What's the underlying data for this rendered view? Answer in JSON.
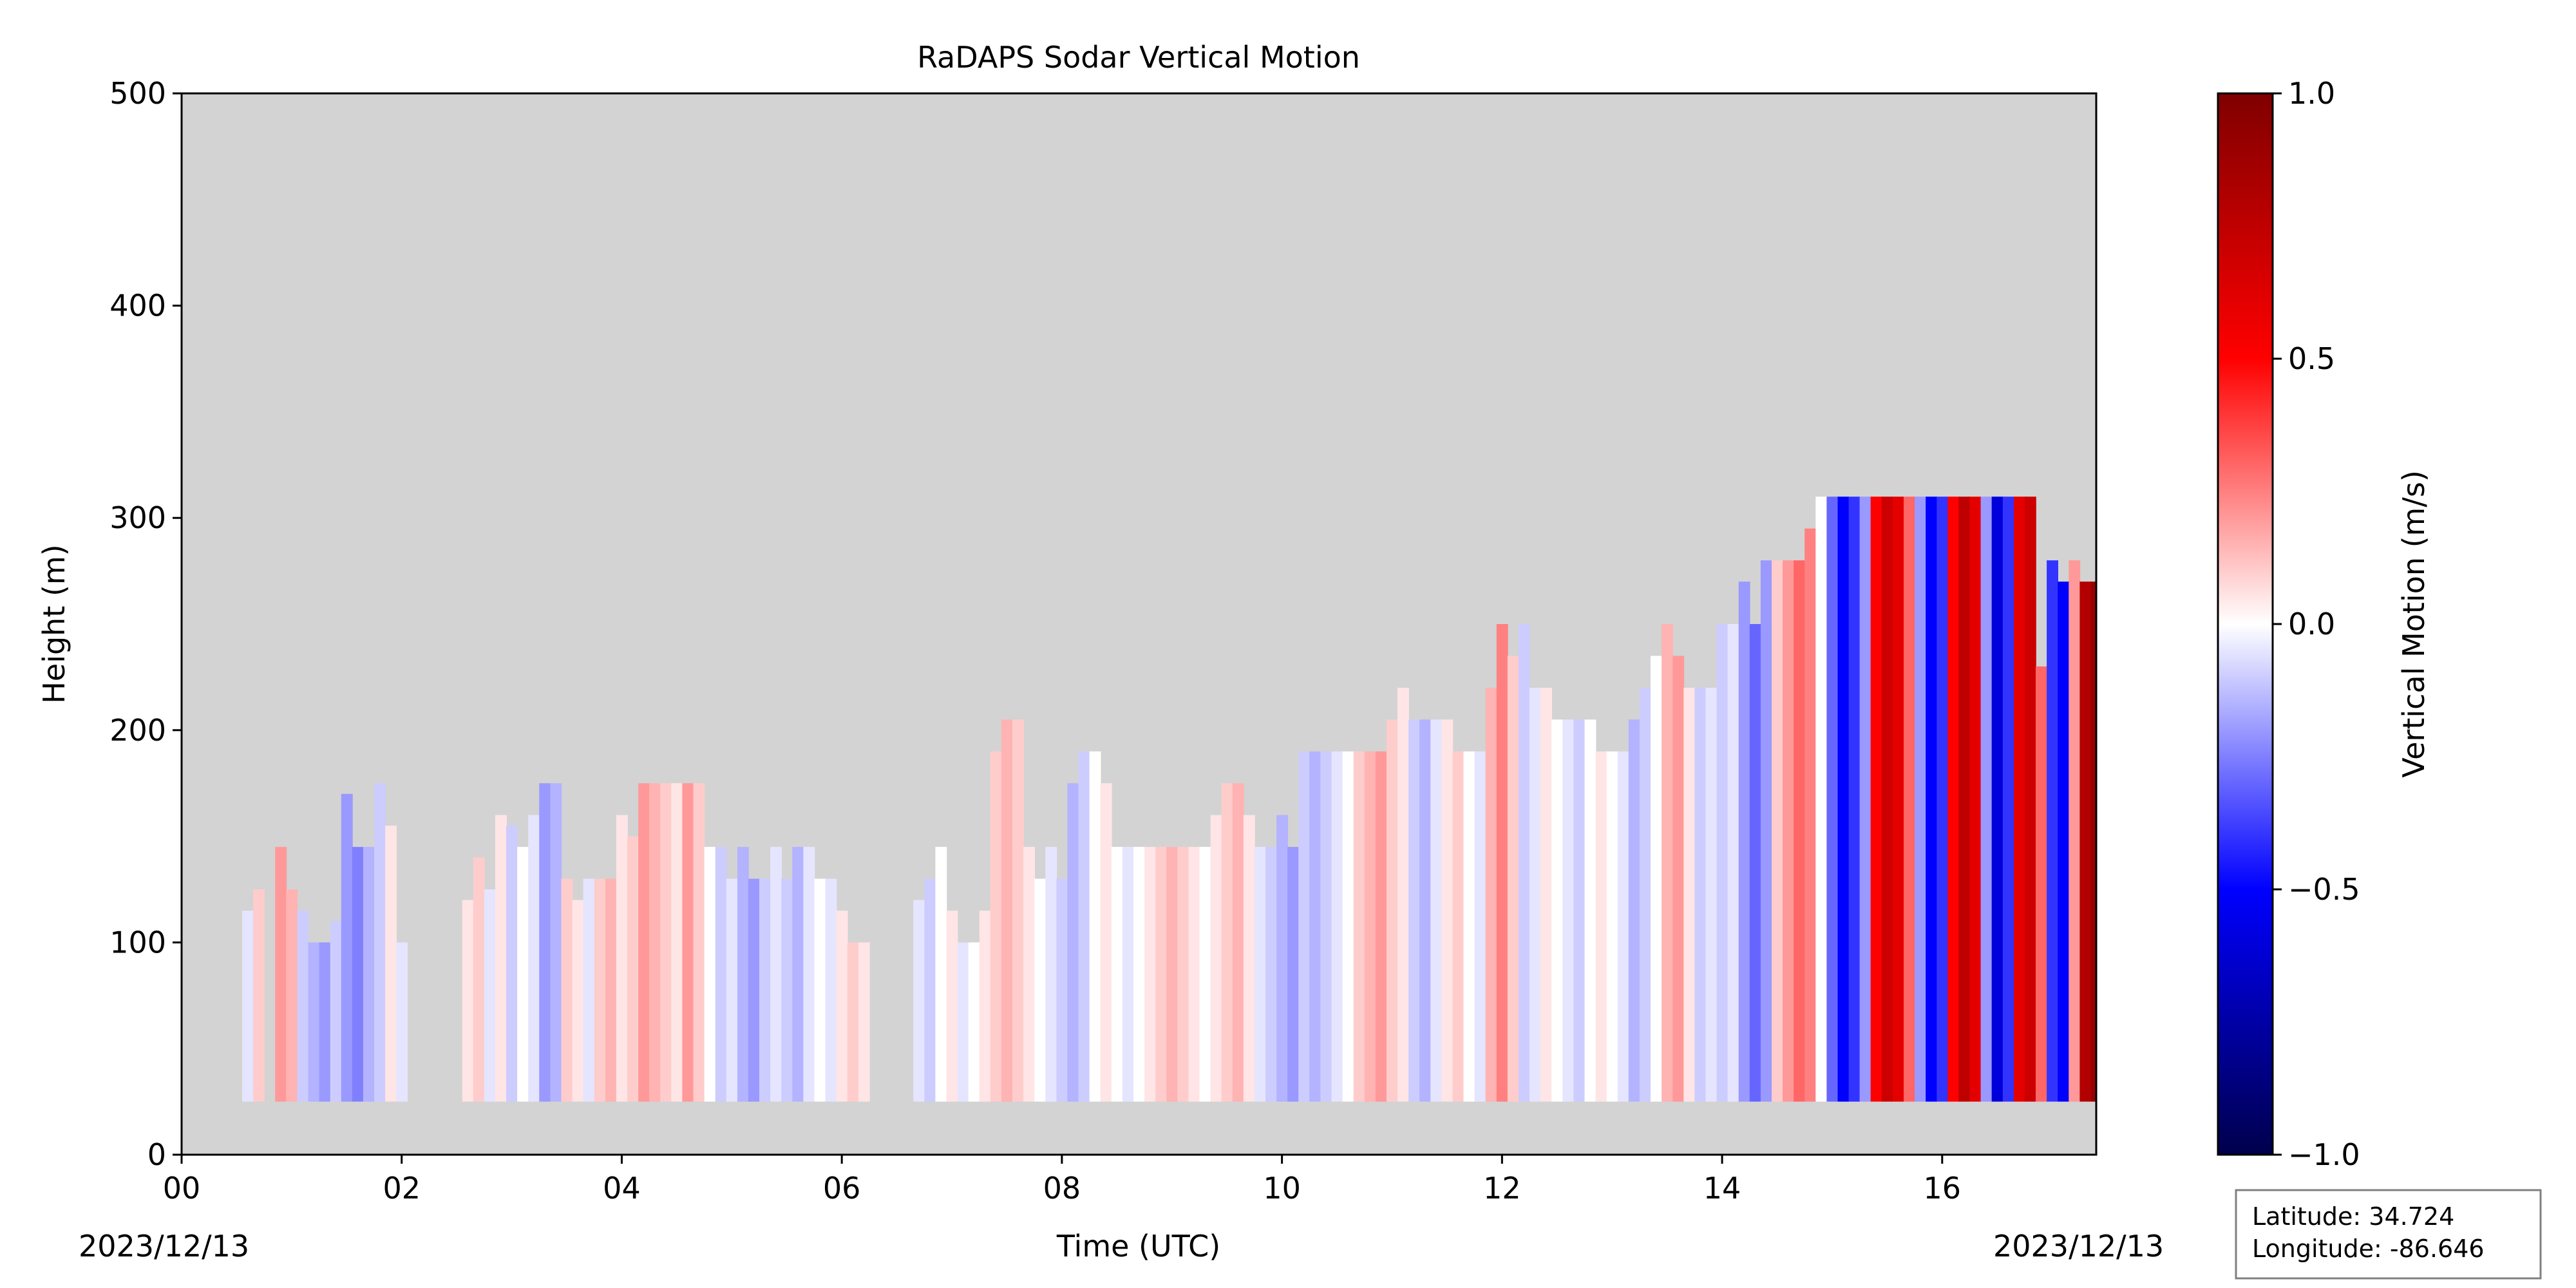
{
  "figure": {
    "title": "RaDAPS Sodar Vertical Motion",
    "date_left": "2023/12/13",
    "date_right": "2023/12/13",
    "location": {
      "latitude_label": "Latitude: 34.724",
      "longitude_label": "Longitude: -86.646"
    }
  },
  "chart_data": {
    "type": "heatmap",
    "title": "RaDAPS Sodar Vertical Motion",
    "xlabel": "Time (UTC)",
    "ylabel": "Height (m)",
    "xlim": [
      0,
      17.4
    ],
    "ylim": [
      0,
      500
    ],
    "x_ticks": [
      0,
      2,
      4,
      6,
      8,
      10,
      12,
      14,
      16
    ],
    "x_tick_labels": [
      "00",
      "02",
      "04",
      "06",
      "08",
      "10",
      "12",
      "14",
      "16"
    ],
    "y_ticks": [
      0,
      100,
      200,
      300,
      400,
      500
    ],
    "y_tick_labels": [
      "0",
      "100",
      "200",
      "300",
      "400",
      "500"
    ],
    "background_color": "#d3d3d3",
    "grid": false,
    "colorbar": {
      "label": "Vertical Motion (m/s)",
      "colormap": "seismic",
      "vmin": -1.0,
      "vmax": 1.0,
      "ticks": [
        1.0,
        0.5,
        0.0,
        -0.5,
        -1.0
      ],
      "tick_labels": [
        "1.0",
        "0.5",
        "0.0",
        "−0.5",
        "−1.0"
      ],
      "colors": [
        "#00004c",
        "#0000ff",
        "#ffffff",
        "#ff0000",
        "#7f0000"
      ]
    },
    "data_floor_m": 25,
    "segments": [
      {
        "times": [
          0.6,
          0.7,
          0.8,
          0.9,
          1.0,
          1.1,
          1.2,
          1.3,
          1.4,
          1.5,
          1.6,
          1.7,
          1.8,
          1.9,
          2.0
        ],
        "tops": [
          115,
          125,
          25,
          145,
          125,
          115,
          100,
          100,
          110,
          170,
          145,
          145,
          175,
          155,
          100
        ],
        "motion": [
          -0.05,
          0.1,
          0.0,
          0.2,
          0.15,
          -0.1,
          -0.15,
          -0.2,
          -0.1,
          -0.2,
          -0.25,
          -0.15,
          -0.1,
          0.05,
          -0.05
        ]
      },
      {
        "times": [
          2.6,
          2.7,
          2.8,
          2.9,
          3.0,
          3.1,
          3.2,
          3.3,
          3.4,
          3.5,
          3.6,
          3.7,
          3.8,
          3.9,
          4.0,
          4.1,
          4.2,
          4.3,
          4.4,
          4.5,
          4.6,
          4.7,
          4.8,
          4.9,
          5.0,
          5.1,
          5.2,
          5.3,
          5.4,
          5.5,
          5.6,
          5.7,
          5.8,
          5.9,
          6.0,
          6.1,
          6.2
        ],
        "tops": [
          120,
          140,
          125,
          160,
          155,
          145,
          160,
          175,
          175,
          130,
          120,
          130,
          130,
          130,
          160,
          150,
          175,
          175,
          175,
          175,
          175,
          175,
          145,
          145,
          130,
          145,
          130,
          130,
          145,
          130,
          145,
          145,
          130,
          130,
          115,
          100,
          100
        ],
        "motion": [
          0.05,
          0.1,
          -0.05,
          0.05,
          -0.1,
          0.0,
          -0.05,
          -0.2,
          -0.15,
          0.1,
          0.05,
          -0.05,
          0.1,
          0.15,
          0.05,
          0.1,
          0.2,
          0.15,
          0.1,
          0.05,
          0.2,
          0.1,
          0.0,
          -0.1,
          -0.05,
          -0.15,
          -0.2,
          -0.1,
          -0.05,
          -0.1,
          -0.15,
          -0.05,
          0.0,
          -0.05,
          0.05,
          0.1,
          0.05
        ]
      },
      {
        "times": [
          6.7,
          6.8,
          6.9,
          7.0,
          7.1,
          7.2,
          7.3,
          7.4,
          7.5,
          7.6,
          7.7,
          7.8,
          7.9,
          8.0,
          8.1,
          8.2,
          8.3,
          8.4,
          8.5,
          8.6,
          8.7,
          8.8,
          8.9,
          9.0,
          9.1,
          9.2,
          9.3,
          9.4,
          9.5,
          9.6,
          9.7,
          9.8,
          9.9,
          10.0,
          10.1,
          10.2,
          10.3,
          10.4,
          10.5,
          10.6,
          10.7,
          10.8,
          10.9,
          11.0,
          11.1,
          11.2,
          11.3,
          11.4,
          11.5,
          11.6,
          11.7,
          11.8,
          11.9,
          12.0,
          12.1,
          12.2,
          12.3,
          12.4,
          12.5,
          12.6,
          12.7,
          12.8,
          12.9,
          13.0,
          13.1,
          13.2,
          13.3,
          13.4,
          13.5,
          13.6,
          13.7,
          13.8,
          13.9,
          14.0,
          14.1,
          14.2,
          14.3,
          14.4,
          14.5,
          14.6,
          14.7,
          14.8,
          14.9,
          15.0,
          15.1,
          15.2,
          15.3,
          15.4,
          15.5,
          15.6,
          15.7,
          15.8,
          15.9,
          16.0,
          16.1,
          16.2,
          16.3,
          16.4,
          16.5,
          16.6,
          16.7,
          16.8,
          16.9,
          17.0,
          17.1,
          17.2,
          17.3,
          17.4
        ],
        "tops": [
          120,
          130,
          145,
          115,
          100,
          100,
          115,
          190,
          205,
          205,
          145,
          130,
          145,
          130,
          175,
          190,
          190,
          175,
          145,
          145,
          145,
          145,
          145,
          145,
          145,
          145,
          145,
          160,
          175,
          175,
          160,
          145,
          145,
          160,
          145,
          190,
          190,
          190,
          190,
          190,
          190,
          190,
          190,
          205,
          220,
          205,
          205,
          205,
          205,
          190,
          190,
          190,
          220,
          250,
          235,
          250,
          220,
          220,
          205,
          205,
          205,
          205,
          190,
          190,
          190,
          205,
          220,
          235,
          250,
          235,
          220,
          220,
          220,
          250,
          250,
          270,
          250,
          280,
          280,
          280,
          280,
          295,
          310,
          310,
          310,
          310,
          310,
          310,
          310,
          310,
          310,
          310,
          310,
          310,
          310,
          310,
          310,
          310,
          310,
          310,
          310,
          310,
          230,
          280,
          270,
          280,
          270,
          270
        ],
        "motion": [
          -0.05,
          -0.1,
          0.0,
          0.05,
          -0.05,
          0.0,
          0.05,
          0.1,
          0.15,
          0.1,
          0.05,
          0.0,
          -0.05,
          -0.1,
          -0.15,
          -0.1,
          0.0,
          0.05,
          0.0,
          -0.05,
          0.0,
          0.05,
          0.1,
          0.15,
          0.1,
          0.05,
          0.0,
          0.05,
          0.1,
          0.15,
          0.05,
          -0.05,
          -0.1,
          -0.15,
          -0.2,
          -0.1,
          -0.15,
          -0.1,
          -0.05,
          0.0,
          0.1,
          0.15,
          0.2,
          0.1,
          0.05,
          -0.1,
          -0.15,
          -0.05,
          0.05,
          0.1,
          0.0,
          -0.05,
          0.15,
          0.25,
          0.1,
          -0.1,
          -0.05,
          0.05,
          0.0,
          -0.05,
          -0.1,
          0.0,
          0.05,
          0.0,
          -0.05,
          -0.15,
          -0.1,
          0.0,
          0.15,
          0.2,
          0.05,
          -0.1,
          -0.05,
          -0.1,
          -0.05,
          -0.2,
          -0.3,
          -0.2,
          0.1,
          0.2,
          0.3,
          0.25,
          0.0,
          -0.3,
          -0.5,
          -0.4,
          -0.2,
          0.5,
          0.7,
          0.6,
          0.3,
          -0.2,
          -0.5,
          -0.4,
          0.5,
          0.75,
          0.6,
          -0.2,
          -0.6,
          -0.4,
          0.6,
          0.7,
          0.3,
          -0.4,
          -0.5,
          0.2,
          0.8,
          0.9
        ]
      }
    ]
  }
}
